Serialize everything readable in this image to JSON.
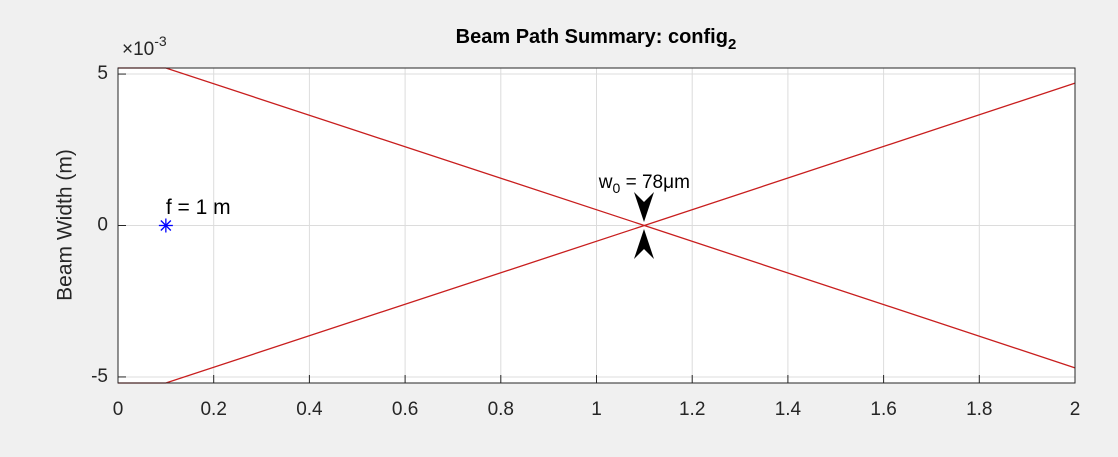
{
  "chart_data": {
    "type": "line",
    "title": "Beam Path Summary: config",
    "title_subscript": "2",
    "ylabel": "Beam Width (m)",
    "y_multiplier": "×10",
    "y_multiplier_exponent": "-3",
    "series": [
      {
        "color": "#c81e1e",
        "x": [
          0,
          0.1,
          1.1,
          2
        ],
        "y": [
          0.0052,
          0.0052,
          0,
          -0.0047
        ]
      },
      {
        "color": "#c81e1e",
        "x": [
          0,
          0.1,
          1.1,
          2
        ],
        "y": [
          -0.0052,
          -0.0052,
          0,
          0.0047
        ]
      }
    ],
    "lens": {
      "x": 0.1,
      "y": 0,
      "color": "#0000ff",
      "label": "f = 1 m"
    },
    "waist": {
      "x": 1.1,
      "label_main": "w",
      "label_sub": "0",
      "label_rest": " = 78μm"
    },
    "xlim": [
      0,
      2
    ],
    "ylim": [
      -0.0052,
      0.0052
    ],
    "xticks": [
      0,
      0.2,
      0.4,
      0.6,
      0.8,
      1,
      1.2,
      1.4,
      1.6,
      1.8,
      2
    ],
    "yticks": [
      {
        "value": -0.005,
        "label": "-5"
      },
      {
        "value": 0,
        "label": "0"
      },
      {
        "value": 0.005,
        "label": "5"
      }
    ],
    "grid": true
  }
}
